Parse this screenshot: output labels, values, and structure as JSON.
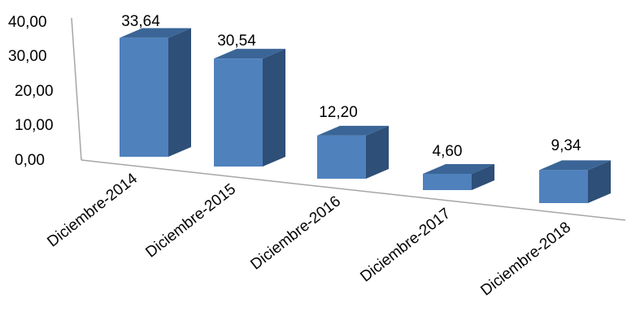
{
  "chart_data": {
    "type": "bar",
    "style": "3d-column",
    "categories": [
      "Diciembre-2014",
      "Diciembre-2015",
      "Diciembre-2016",
      "Diciembre-2017",
      "Diciembre-2018"
    ],
    "values": [
      33.64,
      30.54,
      12.2,
      4.6,
      9.34
    ],
    "data_labels": [
      "33,64",
      "30,54",
      "12,20",
      "4,60",
      "9,34"
    ],
    "y_ticks": [
      "0,00",
      "10,00",
      "20,00",
      "30,00",
      "40,00"
    ],
    "ylim": [
      0,
      40
    ],
    "grid": false,
    "legend": "none",
    "colors": {
      "front": "#4F81BD",
      "side": "#2E4F77",
      "top": "#3A6596",
      "axis": "#A6A6A6"
    }
  }
}
